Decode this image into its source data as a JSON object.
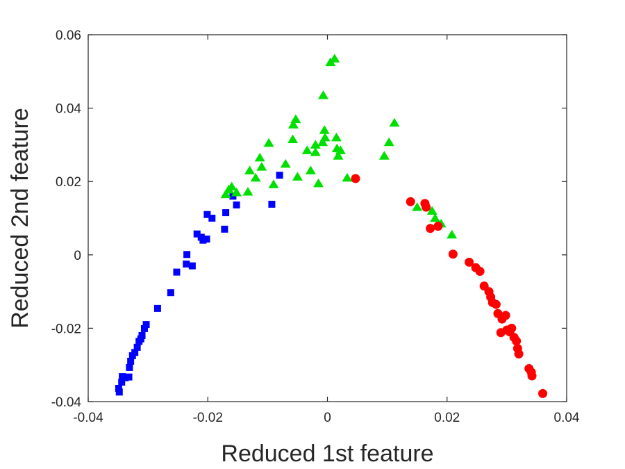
{
  "chart_data": {
    "type": "scatter",
    "title": "",
    "xlabel": "Reduced 1st feature",
    "ylabel": "Reduced 2nd feature",
    "xlim": [
      -0.04,
      0.04
    ],
    "ylim": [
      -0.04,
      0.06
    ],
    "xticks": [
      "-0.04",
      "-0.02",
      "0",
      "0.02",
      "0.04"
    ],
    "yticks": [
      "-0.04",
      "-0.02",
      "0",
      "0.02",
      "0.04",
      "0.06"
    ],
    "grid": false,
    "legend": "none",
    "series": [
      {
        "marker": "square",
        "color": "#0000ff",
        "points": [
          [
            -0.0348,
            -0.0374
          ],
          [
            -0.0349,
            -0.0364
          ],
          [
            -0.0344,
            -0.0347
          ],
          [
            -0.0338,
            -0.0335
          ],
          [
            -0.0343,
            -0.0332
          ],
          [
            -0.0332,
            -0.0333
          ],
          [
            -0.0331,
            -0.0307
          ],
          [
            -0.0329,
            -0.029
          ],
          [
            -0.0326,
            -0.0275
          ],
          [
            -0.0322,
            -0.0266
          ],
          [
            -0.0318,
            -0.0252
          ],
          [
            -0.0315,
            -0.0236
          ],
          [
            -0.0312,
            -0.0229
          ],
          [
            -0.031,
            -0.022
          ],
          [
            -0.0306,
            -0.0201
          ],
          [
            -0.0303,
            -0.019
          ],
          [
            -0.0284,
            -0.0146
          ],
          [
            -0.0262,
            -0.0103
          ],
          [
            -0.0252,
            -0.0047
          ],
          [
            -0.0236,
            -0.0025
          ],
          [
            -0.0235,
            0.0001
          ],
          [
            -0.0226,
            -0.003
          ],
          [
            -0.0218,
            0.0057
          ],
          [
            -0.0211,
            0.0048
          ],
          [
            -0.0208,
            0.004
          ],
          [
            -0.0202,
            0.0043
          ],
          [
            -0.0201,
            0.011
          ],
          [
            -0.0193,
            0.01
          ],
          [
            -0.0172,
            0.007
          ],
          [
            -0.017,
            0.0115
          ],
          [
            -0.0158,
            0.016
          ],
          [
            -0.0152,
            0.0136
          ],
          [
            -0.0093,
            0.0138
          ],
          [
            -0.008,
            0.0217
          ]
        ]
      },
      {
        "marker": "triangle",
        "color": "#00e000",
        "points": [
          [
            -0.017,
            0.0165
          ],
          [
            -0.0165,
            0.0178
          ],
          [
            -0.016,
            0.0186
          ],
          [
            -0.0152,
            0.017
          ],
          [
            -0.0133,
            0.0172
          ],
          [
            -0.013,
            0.023
          ],
          [
            -0.012,
            0.021
          ],
          [
            -0.0113,
            0.0265
          ],
          [
            -0.011,
            0.024
          ],
          [
            -0.0098,
            0.0305
          ],
          [
            -0.009,
            0.0192
          ],
          [
            -0.007,
            0.0248
          ],
          [
            -0.0058,
            0.0315
          ],
          [
            -0.0057,
            0.0355
          ],
          [
            -0.0053,
            0.037
          ],
          [
            -0.005,
            0.0213
          ],
          [
            -0.0034,
            0.0285
          ],
          [
            -0.0028,
            0.023
          ],
          [
            -0.002,
            0.03
          ],
          [
            -0.002,
            0.028
          ],
          [
            -0.0015,
            0.0195
          ],
          [
            -0.0008,
            0.0307
          ],
          [
            -0.0007,
            0.0435
          ],
          [
            -0.0005,
            0.034
          ],
          [
            -0.0004,
            0.032
          ],
          [
            0.0005,
            0.0525
          ],
          [
            0.0012,
            0.0535
          ],
          [
            0.0015,
            0.032
          ],
          [
            0.0016,
            0.029
          ],
          [
            0.0018,
            0.027
          ],
          [
            0.0022,
            0.0285
          ],
          [
            0.0033,
            0.021
          ],
          [
            0.0095,
            0.027
          ],
          [
            0.0103,
            0.0307
          ],
          [
            0.0112,
            0.036
          ],
          [
            0.015,
            0.013
          ],
          [
            0.0175,
            0.012
          ],
          [
            0.018,
            0.01
          ],
          [
            0.019,
            0.0085
          ],
          [
            0.0208,
            0.0055
          ]
        ]
      },
      {
        "marker": "circle",
        "color": "#ff0000",
        "points": [
          [
            0.0047,
            0.0208
          ],
          [
            0.0139,
            0.0145
          ],
          [
            0.0163,
            0.014
          ],
          [
            0.0165,
            0.013
          ],
          [
            0.0172,
            0.0072
          ],
          [
            0.0185,
            0.0078
          ],
          [
            0.021,
            0.0002
          ],
          [
            0.0237,
            -0.002
          ],
          [
            0.0248,
            -0.0035
          ],
          [
            0.0255,
            -0.0045
          ],
          [
            0.0262,
            -0.0085
          ],
          [
            0.027,
            -0.01
          ],
          [
            0.0273,
            -0.0115
          ],
          [
            0.0276,
            -0.013
          ],
          [
            0.0282,
            -0.0135
          ],
          [
            0.0285,
            -0.016
          ],
          [
            0.0292,
            -0.0175
          ],
          [
            0.029,
            -0.0212
          ],
          [
            0.0298,
            -0.0165
          ],
          [
            0.03,
            -0.0205
          ],
          [
            0.0305,
            -0.021
          ],
          [
            0.0308,
            -0.02
          ],
          [
            0.0312,
            -0.0225
          ],
          [
            0.0316,
            -0.0235
          ],
          [
            0.0318,
            -0.0255
          ],
          [
            0.032,
            -0.027
          ],
          [
            0.0337,
            -0.031
          ],
          [
            0.0341,
            -0.032
          ],
          [
            0.0342,
            -0.033
          ],
          [
            0.036,
            -0.0378
          ]
        ]
      }
    ]
  }
}
